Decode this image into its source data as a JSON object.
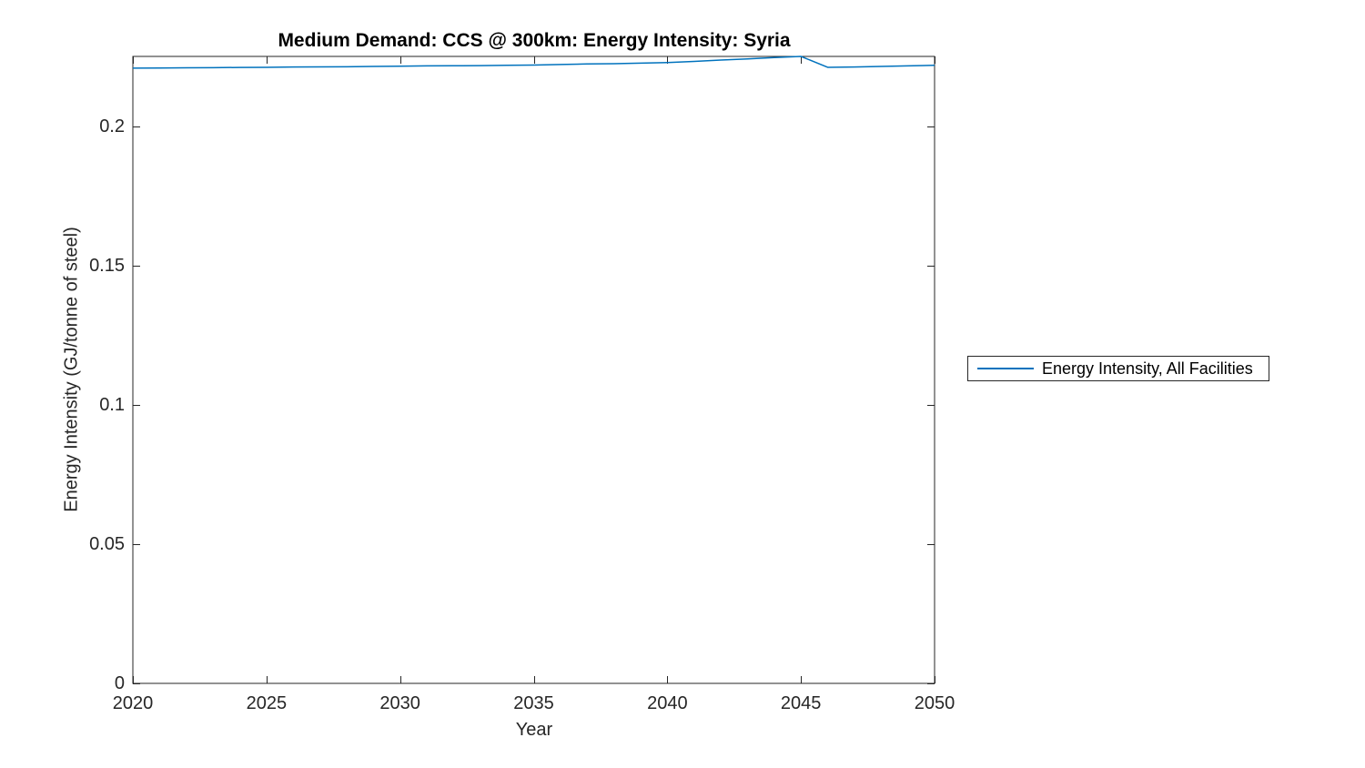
{
  "chart_data": {
    "type": "line",
    "title": "Medium Demand: CCS @ 300km: Energy Intensity: Syria",
    "xlabel": "Year",
    "ylabel": "Energy Intensity (GJ/tonne of steel)",
    "xlim": [
      2020,
      2050
    ],
    "ylim": [
      0,
      0.225
    ],
    "x_ticks": [
      2020,
      2025,
      2030,
      2035,
      2040,
      2045,
      2050
    ],
    "x_tick_labels": [
      "2020",
      "2025",
      "2030",
      "2035",
      "2040",
      "2045",
      "2050"
    ],
    "y_ticks": [
      0,
      0.05,
      0.1,
      0.15,
      0.2
    ],
    "y_tick_labels": [
      "0",
      "0.05",
      "0.1",
      "0.15",
      "0.2"
    ],
    "grid": false,
    "legend_position": "right-outside",
    "axis_color": "#262626",
    "series": [
      {
        "name": "Energy Intensity, All Facilities",
        "color": "#0072BD",
        "x": [
          2020,
          2021,
          2022,
          2023,
          2024,
          2025,
          2026,
          2027,
          2028,
          2029,
          2030,
          2031,
          2032,
          2033,
          2034,
          2035,
          2036,
          2037,
          2038,
          2039,
          2040,
          2041,
          2042,
          2043,
          2044,
          2045,
          2046,
          2047,
          2048,
          2049,
          2050
        ],
        "y": [
          0.2208,
          0.22085,
          0.2209,
          0.22095,
          0.22105,
          0.2211,
          0.2212,
          0.22125,
          0.2213,
          0.2214,
          0.2215,
          0.2216,
          0.22165,
          0.2217,
          0.2218,
          0.2219,
          0.2221,
          0.2223,
          0.2224,
          0.2226,
          0.2228,
          0.2232,
          0.2237,
          0.2241,
          0.2246,
          0.225,
          0.2211,
          0.2212,
          0.2214,
          0.2216,
          0.2218
        ]
      }
    ]
  }
}
